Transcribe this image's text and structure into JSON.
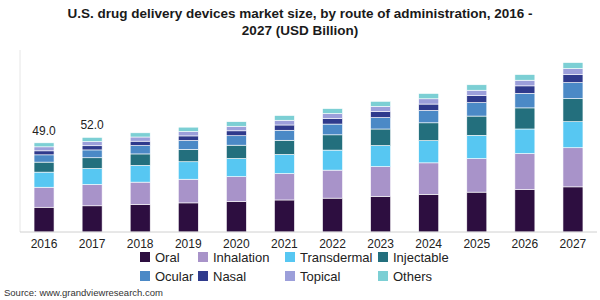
{
  "chart_data": {
    "type": "bar",
    "title": "U.S. drug delivery devices market size, by route of administration, 2016 - 2027 (USD Billion)",
    "source": "Source: www.grandviewresearch.com",
    "stacked": true,
    "tick_labels": "x",
    "legend": "bottom",
    "categories": [
      "2016",
      "2017",
      "2018",
      "2019",
      "2020",
      "2021",
      "2022",
      "2023",
      "2024",
      "2025",
      "2026",
      "2027"
    ],
    "ylim": [
      0,
      100
    ],
    "series": [
      {
        "name": "Oral",
        "color": "#2d0e40",
        "values": [
          13.6,
          14.4,
          15.1,
          16.0,
          16.7,
          17.6,
          18.6,
          19.6,
          20.7,
          21.9,
          23.3,
          24.8
        ]
      },
      {
        "name": "Inhalation",
        "color": "#a893c9",
        "values": [
          11.0,
          11.7,
          12.3,
          13.0,
          13.7,
          14.5,
          15.4,
          16.3,
          17.3,
          18.4,
          19.8,
          21.5
        ]
      },
      {
        "name": "Transdermal",
        "color": "#57c7f2",
        "values": [
          8.3,
          8.8,
          9.2,
          9.6,
          10.0,
          10.5,
          11.0,
          11.6,
          12.2,
          12.8,
          13.5,
          14.3
        ]
      },
      {
        "name": "Injectable",
        "color": "#236f7d",
        "values": [
          5.5,
          5.9,
          6.3,
          6.8,
          7.3,
          7.8,
          8.4,
          9.1,
          9.8,
          10.6,
          11.6,
          12.7
        ]
      },
      {
        "name": "Ocular",
        "color": "#4b89c6",
        "values": [
          4.0,
          4.3,
          4.6,
          4.9,
          5.2,
          5.5,
          5.9,
          6.3,
          6.8,
          7.4,
          8.0,
          8.8
        ]
      },
      {
        "name": "Nasal",
        "color": "#2f3a8c",
        "values": [
          2.2,
          2.3,
          2.4,
          2.5,
          2.7,
          2.9,
          3.1,
          3.3,
          3.5,
          3.8,
          4.1,
          4.4
        ]
      },
      {
        "name": "Topical",
        "color": "#9c9fda",
        "values": [
          2.2,
          2.3,
          2.3,
          2.4,
          2.5,
          2.6,
          2.7,
          2.8,
          2.9,
          3.0,
          3.1,
          3.3
        ]
      },
      {
        "name": "Others",
        "color": "#7ccfd4",
        "values": [
          2.2,
          2.3,
          2.3,
          2.4,
          2.5,
          2.6,
          2.7,
          2.8,
          2.9,
          3.0,
          3.1,
          3.3
        ]
      }
    ],
    "annotations": [
      {
        "x": "2016",
        "y": 49.0,
        "label": "49.0"
      },
      {
        "x": "2017",
        "y": 52.0,
        "label": "52.0"
      }
    ]
  }
}
